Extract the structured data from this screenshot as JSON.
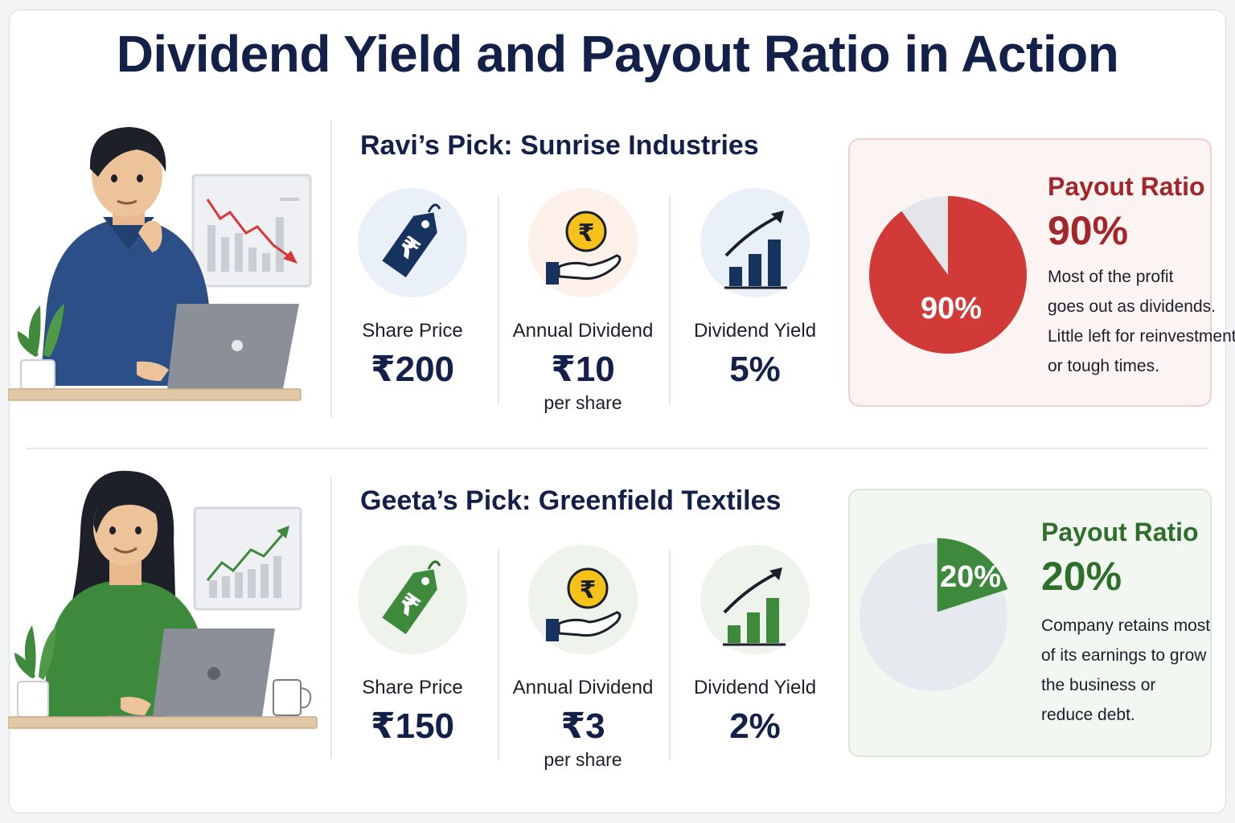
{
  "title": "Dividend Yield and Payout Ratio in Action",
  "colors": {
    "navy": "#13214a",
    "red": "#d13a36",
    "dark_red": "#a2262a",
    "green": "#3e8a3c",
    "dark_green": "#2f6f2c"
  },
  "ravi": {
    "pick_title": "Ravi’s Pick: Sunrise Industries",
    "share_price": {
      "label": "Share Price",
      "value": "₹200",
      "icon": "price-tag-icon"
    },
    "annual_dividend": {
      "label": "Annual Dividend",
      "value": "₹10",
      "sub": "per share",
      "icon": "coin-hand-icon"
    },
    "dividend_yield": {
      "label": "Dividend Yield",
      "value": "5%",
      "icon": "growth-chart-icon"
    },
    "payout": {
      "pie_label": "90%",
      "label": "Payout Ratio",
      "value": "90%",
      "ratio": 0.9,
      "desc": [
        "Most of the profit",
        "goes out as dividends.",
        "Little left for reinvestment",
        "or tough times."
      ]
    }
  },
  "geeta": {
    "pick_title": "Geeta’s Pick: Greenfield Textiles",
    "share_price": {
      "label": "Share Price",
      "value": "₹150",
      "icon": "price-tag-icon"
    },
    "annual_dividend": {
      "label": "Annual Dividend",
      "value": "₹3",
      "sub": "per share",
      "icon": "coin-hand-icon"
    },
    "dividend_yield": {
      "label": "Dividend Yield",
      "value": "2%",
      "icon": "growth-chart-icon"
    },
    "payout": {
      "pie_label": "20%",
      "label": "Payout Ratio",
      "value": "20%",
      "ratio": 0.2,
      "desc": [
        "Company retains most",
        "of its earnings to grow",
        "the business or",
        "reduce debt."
      ]
    }
  },
  "icon_glyphs": {
    "rupee": "₹"
  }
}
